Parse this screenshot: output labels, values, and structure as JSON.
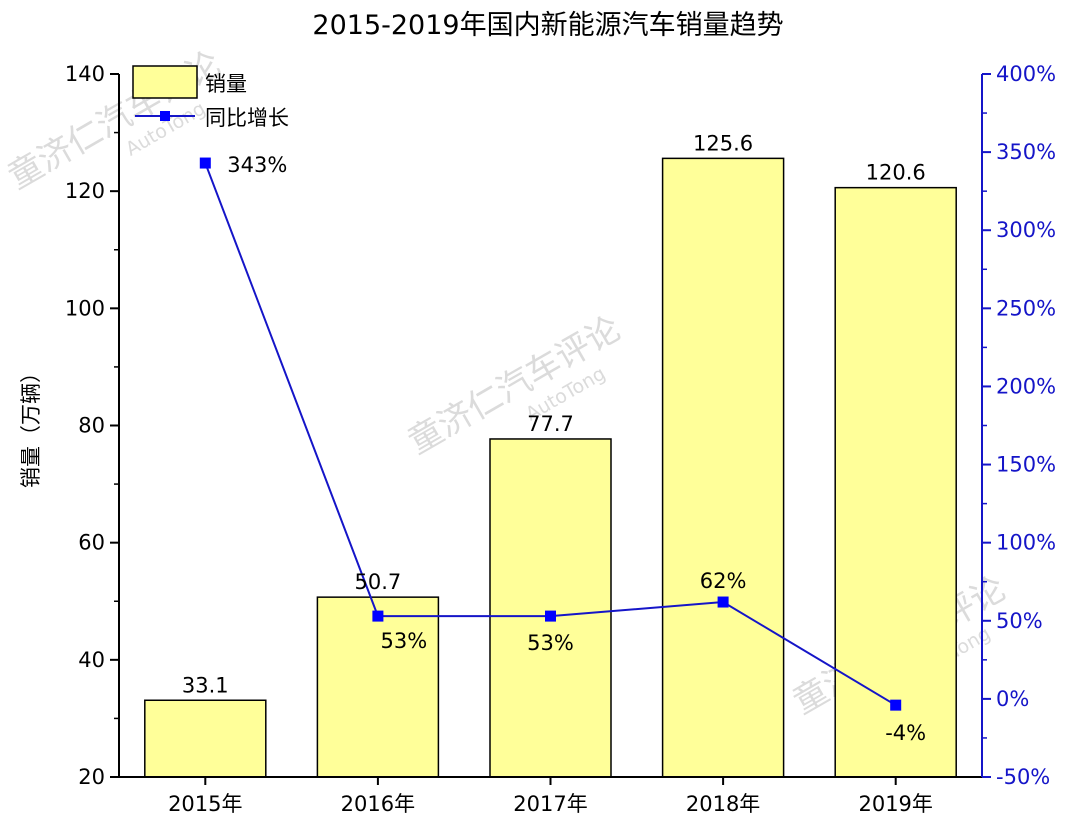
{
  "chart_data": {
    "type": "bar",
    "title": "2015-2019年国内新能源汽车销量趋势",
    "categories": [
      "2015年",
      "2016年",
      "2017年",
      "2018年",
      "2019年"
    ],
    "ylabel": "销量（万辆）",
    "ylim": [
      20,
      140
    ],
    "y_ticks": [
      "20",
      "40",
      "60",
      "80",
      "100",
      "120",
      "140"
    ],
    "y2lim": [
      -50,
      400
    ],
    "y2_ticks": [
      "-50%",
      "0%",
      "50%",
      "100%",
      "150%",
      "200%",
      "250%",
      "300%",
      "350%",
      "400%"
    ],
    "series": [
      {
        "name": "销量",
        "kind": "bar",
        "axis": "left",
        "color": "#ffff99",
        "values": [
          33.1,
          50.7,
          77.7,
          125.6,
          120.6
        ],
        "labels": [
          "33.1",
          "50.7",
          "77.7",
          "125.6",
          "120.6"
        ]
      },
      {
        "name": "同比增长",
        "kind": "line",
        "axis": "right",
        "color": "#1515c8",
        "values": [
          343,
          53,
          53,
          62,
          -4
        ],
        "labels": [
          "343%",
          "53%",
          "53%",
          "62%",
          "-4%"
        ]
      }
    ],
    "legend": "top-left",
    "grid": false,
    "watermarks": [
      {
        "text": "童济仁汽车评论",
        "sub": "AutoTong"
      },
      {
        "text": "童济仁汽车评论",
        "sub": "AutoTong"
      },
      {
        "text": "童济仁汽车评论",
        "sub": "AutoTong"
      }
    ]
  }
}
